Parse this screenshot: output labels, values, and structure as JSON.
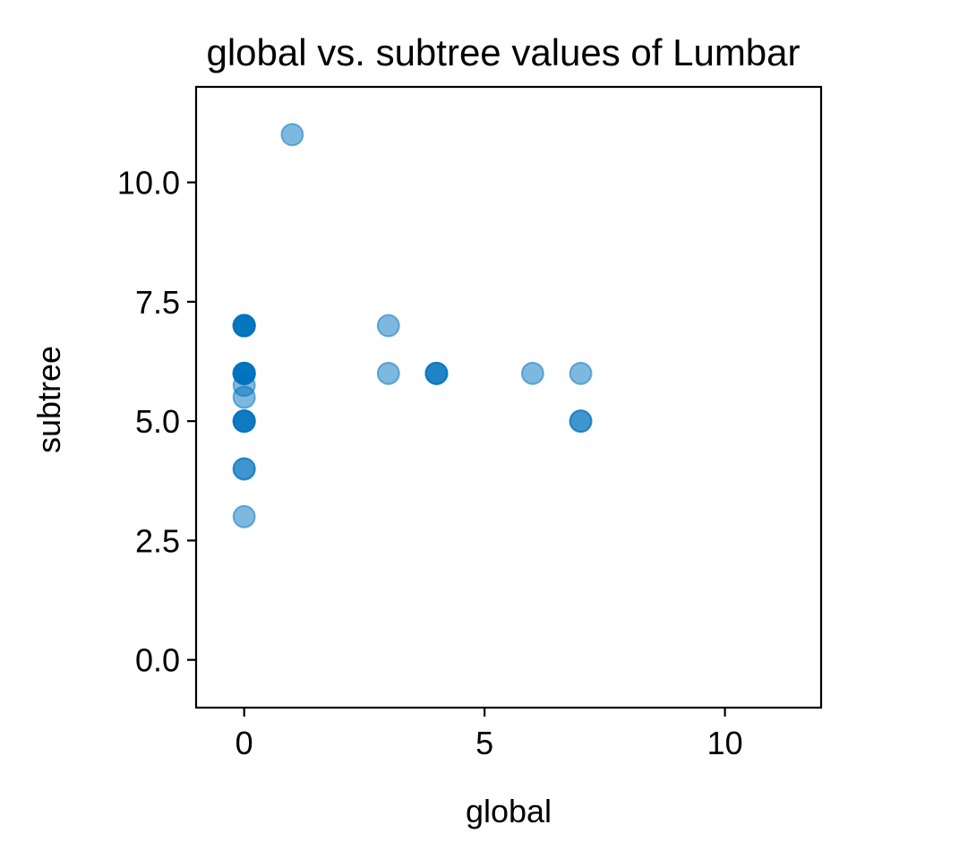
{
  "chart_data": {
    "type": "scatter",
    "title": "global vs. subtree values of Lumbar",
    "xlabel": "global",
    "ylabel": "subtree",
    "xlim": [
      -1,
      12
    ],
    "ylim": [
      -1,
      12
    ],
    "xticks": [
      0,
      5,
      10
    ],
    "xtick_labels": [
      "0",
      "5",
      "10"
    ],
    "yticks": [
      0.0,
      2.5,
      5.0,
      7.5,
      10.0
    ],
    "ytick_labels": [
      "0.0",
      "2.5",
      "5.0",
      "7.5",
      "10.0"
    ],
    "grid": false,
    "legend": "none",
    "marker_color": "#0072bd",
    "marker_alpha": 0.5,
    "points": [
      {
        "x": 1,
        "y": 11
      },
      {
        "x": 0,
        "y": 7
      },
      {
        "x": 0,
        "y": 7
      },
      {
        "x": 0,
        "y": 7
      },
      {
        "x": 0,
        "y": 7
      },
      {
        "x": 0,
        "y": 7
      },
      {
        "x": 0,
        "y": 6
      },
      {
        "x": 0,
        "y": 6
      },
      {
        "x": 0,
        "y": 6
      },
      {
        "x": 0,
        "y": 6
      },
      {
        "x": 0,
        "y": 6
      },
      {
        "x": 0,
        "y": 6
      },
      {
        "x": 0,
        "y": 5.75
      },
      {
        "x": 0,
        "y": 5.5
      },
      {
        "x": 0,
        "y": 5
      },
      {
        "x": 0,
        "y": 5
      },
      {
        "x": 0,
        "y": 5
      },
      {
        "x": 0,
        "y": 5
      },
      {
        "x": 0,
        "y": 4
      },
      {
        "x": 0,
        "y": 4
      },
      {
        "x": 0,
        "y": 3
      },
      {
        "x": 3,
        "y": 7
      },
      {
        "x": 3,
        "y": 6
      },
      {
        "x": 4,
        "y": 6
      },
      {
        "x": 4,
        "y": 6
      },
      {
        "x": 4,
        "y": 6
      },
      {
        "x": 6,
        "y": 6
      },
      {
        "x": 7,
        "y": 6
      },
      {
        "x": 7,
        "y": 5
      },
      {
        "x": 7,
        "y": 5
      }
    ]
  }
}
